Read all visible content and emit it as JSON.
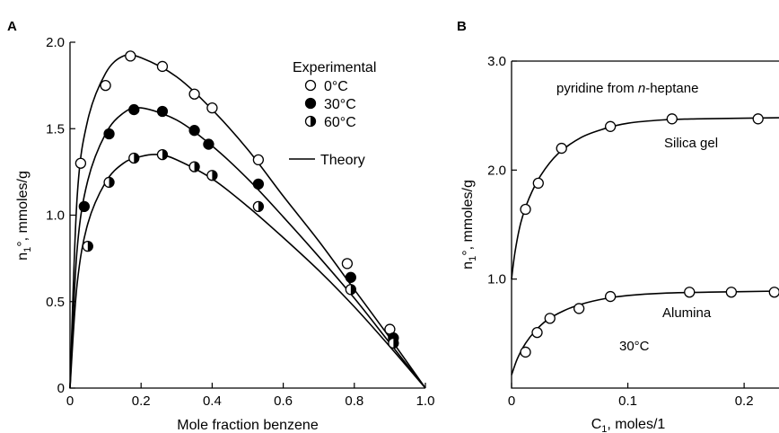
{
  "chart_data": [
    {
      "panel": "A",
      "type": "scatter",
      "xlabel": "Mole fraction benzene",
      "ylabel": "n1°, mmoles/g",
      "xlim": [
        0,
        1.0
      ],
      "ylim": [
        0,
        2.0
      ],
      "xticks": [
        "0",
        "0.2",
        "0.4",
        "0.6",
        "0.8",
        "1.0"
      ],
      "yticks": [
        "0",
        "0.5",
        "1.0",
        "1.5",
        "2.0"
      ],
      "legend": {
        "title": "Experimental",
        "items": [
          "0°C",
          "30°C",
          "60°C"
        ],
        "theory_label": "Theory"
      },
      "series": [
        {
          "name": "0°C",
          "marker": "open",
          "points": [
            [
              0.03,
              1.3
            ],
            [
              0.1,
              1.75
            ],
            [
              0.17,
              1.92
            ],
            [
              0.26,
              1.86
            ],
            [
              0.35,
              1.7
            ],
            [
              0.4,
              1.62
            ],
            [
              0.53,
              1.32
            ],
            [
              0.78,
              0.72
            ],
            [
              0.9,
              0.34
            ]
          ],
          "theory": [
            [
              0,
              0
            ],
            [
              0.02,
              1.1
            ],
            [
              0.05,
              1.55
            ],
            [
              0.1,
              1.82
            ],
            [
              0.15,
              1.92
            ],
            [
              0.2,
              1.91
            ],
            [
              0.3,
              1.8
            ],
            [
              0.4,
              1.61
            ],
            [
              0.5,
              1.38
            ],
            [
              0.6,
              1.11
            ],
            [
              0.7,
              0.85
            ],
            [
              0.8,
              0.57
            ],
            [
              0.9,
              0.29
            ],
            [
              1.0,
              0
            ]
          ]
        },
        {
          "name": "30°C",
          "marker": "filled",
          "points": [
            [
              0.04,
              1.05
            ],
            [
              0.11,
              1.47
            ],
            [
              0.18,
              1.61
            ],
            [
              0.26,
              1.6
            ],
            [
              0.35,
              1.49
            ],
            [
              0.39,
              1.41
            ],
            [
              0.53,
              1.18
            ],
            [
              0.79,
              0.64
            ],
            [
              0.91,
              0.29
            ]
          ],
          "theory": [
            [
              0,
              0
            ],
            [
              0.02,
              0.8
            ],
            [
              0.05,
              1.2
            ],
            [
              0.1,
              1.47
            ],
            [
              0.15,
              1.59
            ],
            [
              0.2,
              1.62
            ],
            [
              0.3,
              1.55
            ],
            [
              0.4,
              1.4
            ],
            [
              0.5,
              1.21
            ],
            [
              0.6,
              0.99
            ],
            [
              0.7,
              0.76
            ],
            [
              0.8,
              0.52
            ],
            [
              0.9,
              0.26
            ],
            [
              1.0,
              0
            ]
          ]
        },
        {
          "name": "60°C",
          "marker": "half",
          "points": [
            [
              0.05,
              0.82
            ],
            [
              0.11,
              1.19
            ],
            [
              0.18,
              1.33
            ],
            [
              0.26,
              1.35
            ],
            [
              0.35,
              1.28
            ],
            [
              0.4,
              1.23
            ],
            [
              0.53,
              1.05
            ],
            [
              0.79,
              0.57
            ],
            [
              0.91,
              0.26
            ]
          ],
          "theory": [
            [
              0,
              0
            ],
            [
              0.02,
              0.6
            ],
            [
              0.05,
              0.95
            ],
            [
              0.1,
              1.19
            ],
            [
              0.15,
              1.3
            ],
            [
              0.2,
              1.34
            ],
            [
              0.25,
              1.35
            ],
            [
              0.3,
              1.32
            ],
            [
              0.4,
              1.21
            ],
            [
              0.5,
              1.05
            ],
            [
              0.6,
              0.87
            ],
            [
              0.7,
              0.68
            ],
            [
              0.8,
              0.47
            ],
            [
              0.9,
              0.24
            ],
            [
              1.0,
              0
            ]
          ]
        }
      ]
    },
    {
      "panel": "B",
      "type": "scatter",
      "xlabel": "C1, moles/1",
      "ylabel": "n1°, mmoles/g",
      "xlim": [
        0,
        0.23
      ],
      "ylim": [
        0,
        3.0
      ],
      "xticks": [
        "0",
        "0.1",
        "0.2"
      ],
      "yticks": [
        "1.0",
        "2.0",
        "3.0"
      ],
      "annotations": {
        "title_line": "pyridine from ",
        "title_italic": "n",
        "title_rest": "-heptane",
        "silica": "Silica gel",
        "alumina": "Alumina",
        "temp": "30°C"
      },
      "series": [
        {
          "name": "Silica gel",
          "marker": "open",
          "points": [
            [
              0.012,
              1.64
            ],
            [
              0.023,
              1.88
            ],
            [
              0.043,
              2.2
            ],
            [
              0.085,
              2.4
            ],
            [
              0.138,
              2.47
            ],
            [
              0.212,
              2.47
            ]
          ],
          "theory": [
            [
              0,
              1.0
            ],
            [
              0.003,
              1.25
            ],
            [
              0.008,
              1.52
            ],
            [
              0.015,
              1.74
            ],
            [
              0.025,
              1.95
            ],
            [
              0.04,
              2.15
            ],
            [
              0.06,
              2.3
            ],
            [
              0.08,
              2.38
            ],
            [
              0.1,
              2.43
            ],
            [
              0.13,
              2.46
            ],
            [
              0.16,
              2.47
            ],
            [
              0.23,
              2.48
            ]
          ]
        },
        {
          "name": "Alumina",
          "marker": "open",
          "points": [
            [
              0.012,
              0.33
            ],
            [
              0.022,
              0.51
            ],
            [
              0.033,
              0.64
            ],
            [
              0.058,
              0.73
            ],
            [
              0.085,
              0.84
            ],
            [
              0.153,
              0.88
            ],
            [
              0.189,
              0.88
            ],
            [
              0.226,
              0.88
            ]
          ],
          "theory": [
            [
              0,
              0.12
            ],
            [
              0.005,
              0.27
            ],
            [
              0.012,
              0.41
            ],
            [
              0.02,
              0.52
            ],
            [
              0.03,
              0.62
            ],
            [
              0.045,
              0.71
            ],
            [
              0.06,
              0.77
            ],
            [
              0.08,
              0.82
            ],
            [
              0.1,
              0.85
            ],
            [
              0.13,
              0.87
            ],
            [
              0.17,
              0.88
            ],
            [
              0.23,
              0.89
            ]
          ]
        }
      ]
    }
  ],
  "panels": {
    "a": {
      "letter": "A",
      "legend_title": "Experimental",
      "leg1": "0°C",
      "leg2": "30°C",
      "leg3": "60°C",
      "theory": "Theory",
      "xlabel": "Mole fraction benzene",
      "ylabel_main": "n",
      "ylabel_sub": "1",
      "ylabel_rest": "°, mmoles/g"
    },
    "b": {
      "letter": "B",
      "xlabel_main": "C",
      "xlabel_sub": "1",
      "xlabel_rest": ", moles/1",
      "ylabel_main": "n",
      "ylabel_sub": "1",
      "ylabel_rest": "°, mmoles/g"
    }
  }
}
